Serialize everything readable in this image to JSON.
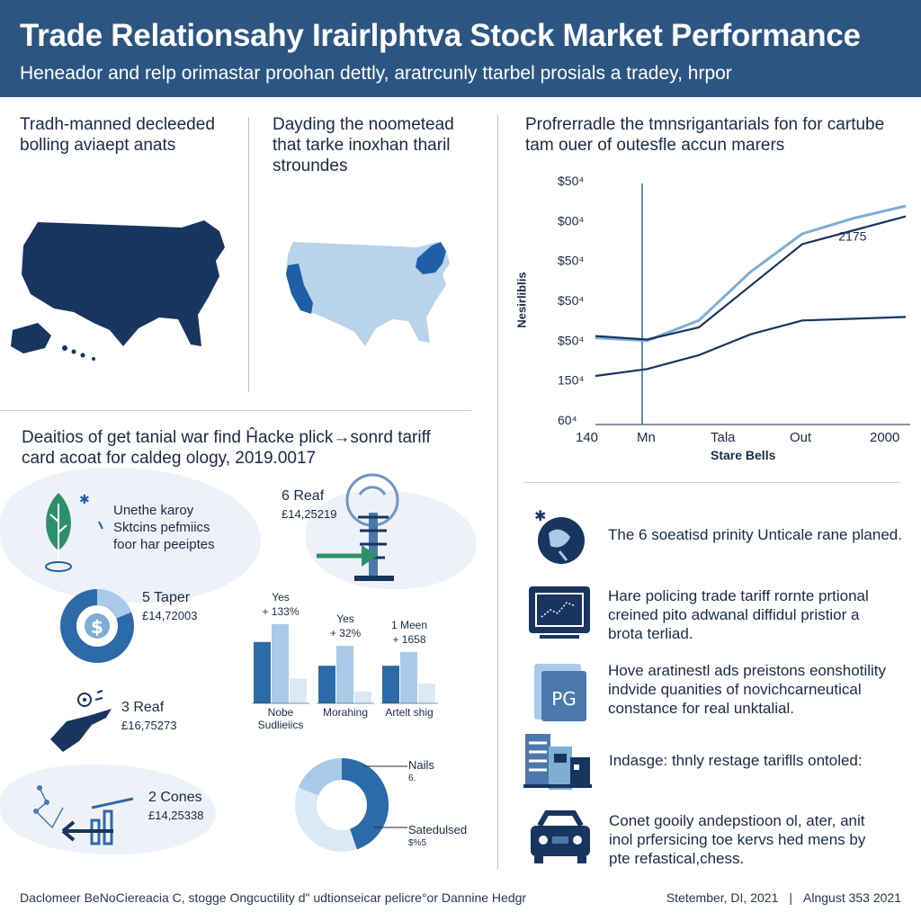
{
  "header": {
    "title": "Trade Relationsahy Irairlphtva Stock Market Performance",
    "subtitle": "Heneador and relp orimastar proohan dettly, aratrcunly ttarbel prosials a tradey, hrpor"
  },
  "maps": {
    "left_caption": [
      "Tradh-manned decleeded",
      "bolling aviaept anats"
    ],
    "right_caption": [
      "Dayding the noometead",
      "that tarke inoxhan tharil",
      "stroundes"
    ],
    "colors": {
      "us_dark": "#17355f",
      "us_light": "#b9d3ea",
      "highlight": "#1f5ea8"
    }
  },
  "line_chart": {
    "caption": [
      "Profrerradle the tmnsrigantarials fon for cartube",
      "tam ouer of outesfle accun marers"
    ],
    "annotation": "2175",
    "xlabel": "Stare Bells",
    "ylabel": "Nesirliblis"
  },
  "chart_data": {
    "type": "line",
    "ylabel": "Nesirliblis",
    "xlabel": "Stare Bells",
    "y_tick_labels": [
      "$50⁴",
      "$00⁴",
      "$50⁴",
      "$50⁴",
      "$50⁴",
      "150⁴",
      "60⁴"
    ],
    "x_tick_labels": [
      "140",
      "Mn",
      "Tala",
      "Out",
      "2000"
    ],
    "x": [
      0,
      1,
      2,
      3,
      4,
      5,
      6
    ],
    "ylim": [
      0,
      7
    ],
    "series": [
      {
        "values": [
          2.5,
          2.42,
          3.0,
          4.4,
          5.5,
          5.95,
          6.3
        ],
        "color": "#7faed4"
      },
      {
        "values": [
          2.55,
          2.45,
          2.8,
          4.0,
          5.2,
          5.6,
          6.0
        ],
        "color": "#17355f"
      },
      {
        "values": [
          1.4,
          1.6,
          2.0,
          2.6,
          3.0,
          3.05,
          3.1
        ],
        "color": "#17355f"
      }
    ],
    "grid": false
  },
  "deals": {
    "caption": [
      "Deaitios of get tanial war find Ĥacke plick→sonrd tariff",
      "card acoat for caldeg ology, 2019.0017"
    ],
    "leaf_text": [
      "Unethe karoy",
      "Sktcins pefmiics",
      "foor har peeiptes"
    ],
    "items": [
      {
        "title": "6 Reaf",
        "value": "£14,25219"
      },
      {
        "title": "5 Taper",
        "value": "£14,72003"
      },
      {
        "title": "3 Reaf",
        "value": "£16,75273"
      },
      {
        "title": "2 Cones",
        "value": "£14,25338"
      }
    ]
  },
  "bar_groups": [
    {
      "top": "Yes",
      "delta": "+ 133%",
      "label": [
        "Nobe",
        "Sudlieiics"
      ],
      "values": [
        62,
        80,
        25
      ]
    },
    {
      "top": "Yes",
      "delta": "+ 32%",
      "label": [
        "Morahing"
      ],
      "values": [
        38,
        58,
        12
      ]
    },
    {
      "top": "1 Meen",
      "delta": "+ 1658",
      "label": [
        "Artelt shig"
      ],
      "values": [
        38,
        52,
        20
      ]
    }
  ],
  "donut": {
    "label_top": [
      "Nails",
      "6."
    ],
    "label_bottom": [
      "Satedulsed",
      "$%5"
    ],
    "colors": {
      "dark": "#2c6aa8",
      "light": "#a9cae8",
      "pale": "#dbe8f5"
    }
  },
  "list": [
    {
      "icon": "globe-pin-icon",
      "lines": [
        "The 6 soeatisd prinity Unticale rane planed."
      ]
    },
    {
      "icon": "monitor-chart-icon",
      "lines": [
        "Hare policing trade tariff rornte prtional",
        "creined pito adwanal diffidul pristior a",
        "brota terliad."
      ]
    },
    {
      "icon": "document-pg-icon",
      "badge": "PG",
      "lines": [
        "Hove aratinestl ads preistons eonshotility",
        "indvide quanities of novichcarneutical",
        "constance for real unktalial."
      ]
    },
    {
      "icon": "building-icon",
      "lines": [
        "Indasge: thnly restage tariflls ontoled:"
      ]
    },
    {
      "icon": "car-icon",
      "lines": [
        "Conet gooily andepstioon ol, ater, anit",
        "inol prfersicing toe kervs hed mens by",
        "pte refastical,chess."
      ]
    }
  ],
  "footer": {
    "left": "Daclomeer BeNoCiereacia C, stogge Ongcuctility d\" udtionseicar pelicre°or Dannine Hedgr",
    "date1": "Stetember, DI, 2021",
    "date2": "Alngust 353 2021"
  }
}
